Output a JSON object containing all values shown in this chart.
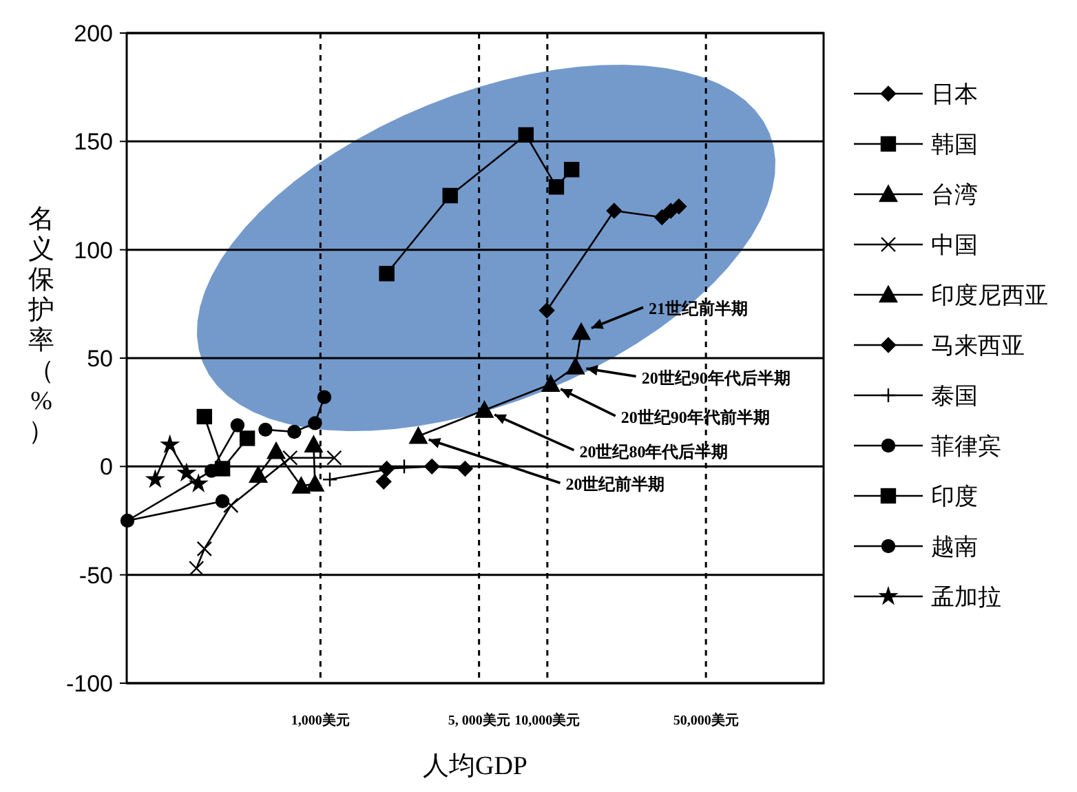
{
  "chart_data": {
    "type": "line",
    "xlabel": "人均GDP",
    "ylabel": "名义保护率（%）",
    "log": "x",
    "xlim": [
      140,
      165000
    ],
    "ylim": [
      -100,
      200
    ],
    "xticks": [
      {
        "value": 1000,
        "label": "1,000美元"
      },
      {
        "value": 5000,
        "label": "5, 000美元"
      },
      {
        "value": 10000,
        "label": "10,000美元"
      },
      {
        "value": 50000,
        "label": "50,000美元"
      }
    ],
    "yticks": [
      -100,
      -50,
      0,
      50,
      100,
      150,
      200
    ],
    "grid": true,
    "legend": "right",
    "line_style": "solid",
    "series": [
      {
        "name": "日本",
        "color": "#000000",
        "marker": "diamond",
        "x": [
          9950,
          19700,
          32000,
          35000,
          38000
        ],
        "values": [
          72,
          118,
          115,
          118,
          120
        ]
      },
      {
        "name": "韩国",
        "color": "#000000",
        "marker": "square",
        "x": [
          1960,
          3730,
          8050,
          10960,
          12800
        ],
        "values": [
          89,
          125,
          153,
          129,
          137
        ]
      },
      {
        "name": "台湾",
        "color": "#000000",
        "marker": "triangle",
        "x": [
          2700,
          5280,
          10350,
          13300,
          14100
        ],
        "values": [
          14,
          26,
          38,
          46,
          62
        ]
      },
      {
        "name": "中国",
        "color": "#000000",
        "marker": "cross",
        "x": [
          284,
          308,
          403,
          735,
          1150
        ],
        "values": [
          -47,
          -38,
          -18,
          4,
          4
        ]
      },
      {
        "name": "印度尼西亚",
        "color": "#000000",
        "marker": "triangle",
        "x": [
          532,
          638,
          822,
          946,
          933
        ],
        "values": [
          -4,
          7,
          -9,
          -8,
          10
        ]
      },
      {
        "name": "马来西亚",
        "color": "#000000",
        "marker": "diamond",
        "x": [
          1900,
          1960,
          3100,
          4340
        ],
        "values": [
          -7,
          -1,
          0,
          -1
        ]
      },
      {
        "name": "泰国",
        "color": "#000000",
        "marker": "plus",
        "x": [
          1100,
          2340
        ],
        "values": [
          -6,
          0
        ]
      },
      {
        "name": "菲律宾",
        "color": "#000000",
        "marker": "circle",
        "x": [
          572,
          767,
          946,
          1040
        ],
        "values": [
          17,
          16,
          20,
          32
        ]
      },
      {
        "name": "印度",
        "color": "#000000",
        "marker": "square",
        "x": [
          308,
          370,
          476
        ],
        "values": [
          23,
          -1,
          13
        ]
      },
      {
        "name": "越南",
        "color": "#000000",
        "marker": "circle",
        "x": [
          370,
          141,
          331,
          431
        ],
        "values": [
          -16,
          -25,
          -2,
          19
        ]
      },
      {
        "name": "孟加拉",
        "color": "#000000",
        "marker": "star",
        "x": [
          187,
          217,
          257,
          290
        ],
        "values": [
          -6,
          10,
          -3,
          -8
        ]
      }
    ],
    "annotations": [
      {
        "text": "20世纪前半期",
        "x": 2700,
        "y": 14
      },
      {
        "text": "20世纪80年代后半期",
        "x": 5280,
        "y": 26
      },
      {
        "text": "20世纪90年代前半期",
        "x": 10350,
        "y": 38
      },
      {
        "text": "20世纪90年代后半期",
        "x": 13300,
        "y": 46
      },
      {
        "text": "21世纪前半期",
        "x": 14100,
        "y": 62
      }
    ]
  }
}
